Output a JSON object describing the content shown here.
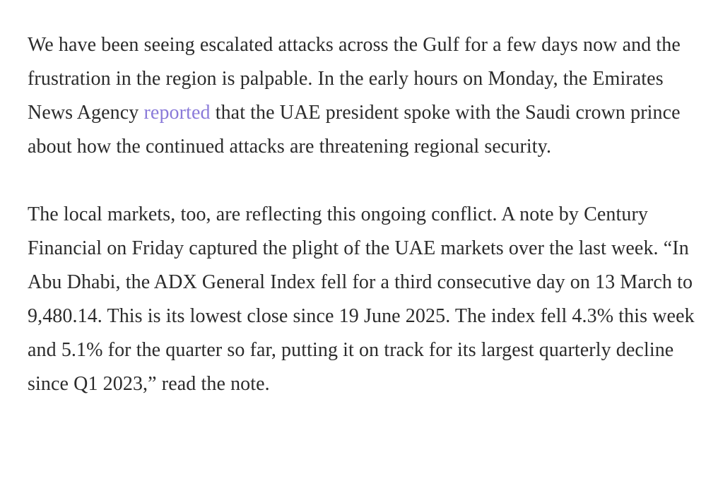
{
  "article": {
    "paragraph1": {
      "before_link": "We have been seeing escalated attacks across the Gulf for a few days now and the frustration in the region is palpable. In the early hours on Monday, the Emirates News Agency ",
      "link_text": "reported",
      "after_link": " that the UAE president spoke with the Saudi crown prince about how the continued attacks are threatening regional security."
    },
    "paragraph2": {
      "text": "The local markets, too, are reflecting this ongoing conflict. A note by Century Financial on Friday captured the plight of the UAE markets over the last week. “In Abu Dhabi, the ADX General Index fell for a third consecutive day on 13 March to 9,480.14. This is its lowest close since 19 June 2025. The index fell 4.3% this week and 5.1% for the quarter so far, putting it on track for its largest quarterly decline since Q1 2023,” read the note."
    }
  },
  "colors": {
    "text": "#2b2b2b",
    "link": "#8a7ad9",
    "background": "#ffffff"
  }
}
